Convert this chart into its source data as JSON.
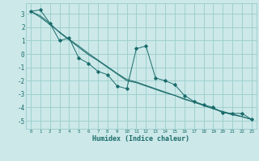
{
  "xlabel": "Humidex (Indice chaleur)",
  "ylabel": "",
  "bg_color": "#cce8e8",
  "grid_color": "#99cccc",
  "line_color": "#1a6b6b",
  "x_data": [
    0,
    1,
    2,
    3,
    4,
    5,
    6,
    7,
    8,
    9,
    10,
    11,
    12,
    13,
    14,
    15,
    16,
    17,
    18,
    19,
    20,
    21,
    22,
    23
  ],
  "y_main": [
    3.2,
    3.3,
    2.3,
    1.0,
    1.2,
    -0.3,
    -0.7,
    -1.3,
    -1.55,
    -2.4,
    -2.6,
    0.4,
    0.6,
    -1.8,
    -2.0,
    -2.3,
    -3.1,
    -3.55,
    -3.8,
    -4.0,
    -4.4,
    -4.45,
    -4.45,
    -4.9
  ],
  "y_trend1": [
    3.2,
    2.75,
    2.2,
    1.65,
    1.1,
    0.6,
    0.05,
    -0.45,
    -0.95,
    -1.45,
    -1.9,
    -2.1,
    -2.35,
    -2.6,
    -2.85,
    -3.1,
    -3.35,
    -3.6,
    -3.85,
    -4.1,
    -4.35,
    -4.55,
    -4.7,
    -4.9
  ],
  "y_trend2": [
    3.2,
    2.85,
    2.3,
    1.6,
    1.05,
    0.5,
    -0.05,
    -0.5,
    -1.0,
    -1.5,
    -2.0,
    -2.15,
    -2.4,
    -2.65,
    -2.9,
    -3.1,
    -3.4,
    -3.6,
    -3.85,
    -4.1,
    -4.3,
    -4.5,
    -4.68,
    -4.9
  ],
  "xlim": [
    -0.5,
    23.5
  ],
  "ylim": [
    -5.6,
    3.8
  ],
  "yticks": [
    3,
    2,
    1,
    0,
    -1,
    -2,
    -3,
    -4,
    -5
  ],
  "xticks": [
    0,
    1,
    2,
    3,
    4,
    5,
    6,
    7,
    8,
    9,
    10,
    11,
    12,
    13,
    14,
    15,
    16,
    17,
    18,
    19,
    20,
    21,
    22,
    23
  ]
}
